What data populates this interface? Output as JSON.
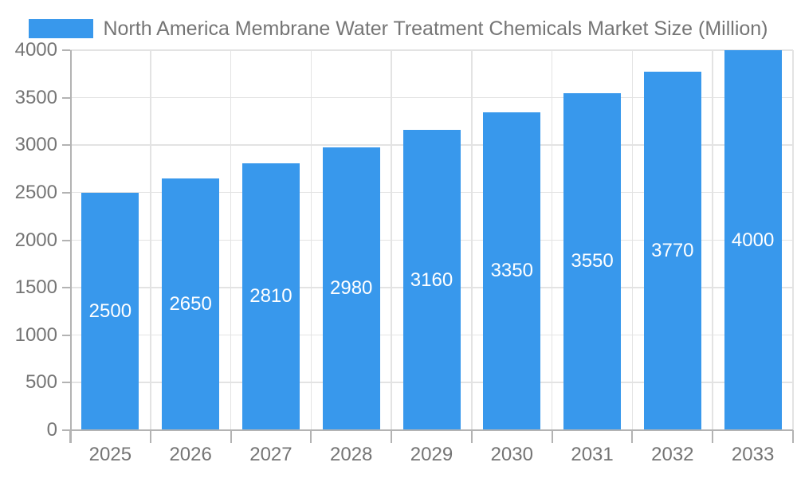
{
  "legend": {
    "label": "North America Membrane Water Treatment Chemicals Market Size (Million)"
  },
  "colors": {
    "bar": "#3898EC",
    "grid": "#E3E3E3",
    "axis": "#B3B3B3",
    "text": "#757575",
    "value_label": "#FFFFFF",
    "background": "#FFFFFF"
  },
  "chart_data": {
    "type": "bar",
    "title": "North America Membrane Water Treatment Chemicals Market Size (Million)",
    "categories": [
      "2025",
      "2026",
      "2027",
      "2028",
      "2029",
      "2030",
      "2031",
      "2032",
      "2033"
    ],
    "values": [
      2500,
      2650,
      2810,
      2980,
      3160,
      3350,
      3550,
      3770,
      4000
    ],
    "xlabel": "",
    "ylabel": "",
    "ylim": [
      0,
      4000
    ],
    "ytick_interval": 500,
    "yticklabels": [
      "0",
      "500",
      "1000",
      "1500",
      "2000",
      "2500",
      "3000",
      "3500",
      "4000"
    ],
    "grid": true,
    "legend_position": "top-center",
    "value_label_position": "inside-center"
  }
}
